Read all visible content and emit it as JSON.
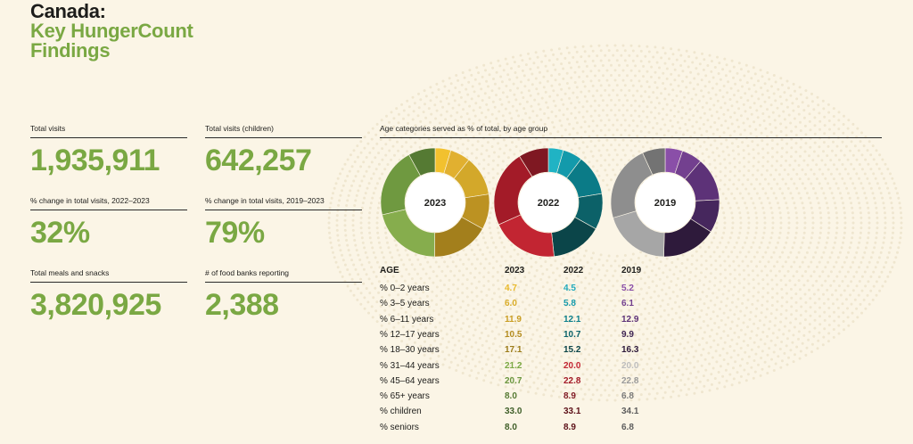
{
  "title": {
    "line1": "Canada:",
    "line2": "Key HungerCount",
    "line3": "Findings"
  },
  "stats": [
    {
      "label": "Total visits",
      "value": "1,935,911"
    },
    {
      "label": "Total visits (children)",
      "value": "642,257"
    },
    {
      "label": "% change in total visits, 2022–2023",
      "value": "32%"
    },
    {
      "label": "% change in total visits, 2019–2023",
      "value": "79%"
    },
    {
      "label": "Total meals and snacks",
      "value": "3,820,925"
    },
    {
      "label": "# of food banks reporting",
      "value": "2,388"
    }
  ],
  "colors": {
    "accent_green": "#7aa843",
    "c2023": [
      "#f2c12e",
      "#e1b030",
      "#d3a82a",
      "#bc9222",
      "#a37f1c",
      "#86ad4d",
      "#6f9940",
      "#557a33",
      "#3f5e28"
    ],
    "c2022": [
      "#20b3c4",
      "#139aab",
      "#0b7b87",
      "#0c6168",
      "#0b4549",
      "#c22532",
      "#a31b28",
      "#7f1822",
      "#5c1018"
    ],
    "c2019": [
      "#8a4fa8",
      "#73408f",
      "#5d3278",
      "#46275d",
      "#2e1a3b",
      "#a6a6a6",
      "#8e8e8e",
      "#737373",
      "#5e5e5e"
    ]
  },
  "chart_data": {
    "type": "pie",
    "title": "Age categories served as % of total, by age group",
    "categories": [
      "% 0–2 years",
      "% 3–5 years",
      "% 6–11 years",
      "% 12–17 years",
      "% 18–30 years",
      "% 31–44 years",
      "% 45–64 years",
      "% 65+ years"
    ],
    "series": [
      {
        "name": "2023",
        "values": [
          4.7,
          6.0,
          11.9,
          10.5,
          17.1,
          21.2,
          20.7,
          8.0
        ]
      },
      {
        "name": "2022",
        "values": [
          4.5,
          5.8,
          12.1,
          10.7,
          15.2,
          20.0,
          22.8,
          8.9
        ]
      },
      {
        "name": "2019",
        "values": [
          5.2,
          6.1,
          12.9,
          9.9,
          16.3,
          20.0,
          22.8,
          6.8
        ]
      }
    ],
    "table": {
      "header": [
        "AGE",
        "2023",
        "2022",
        "2019"
      ],
      "rows": [
        [
          "% 0–2 years",
          "4.7",
          "4.5",
          "5.2"
        ],
        [
          "% 3–5 years",
          "6.0",
          "5.8",
          "6.1"
        ],
        [
          "% 6–11 years",
          "11.9",
          "12.1",
          "12.9"
        ],
        [
          "% 12–17 years",
          "10.5",
          "10.7",
          "9.9"
        ],
        [
          "% 18–30 years",
          "17.1",
          "15.2",
          "16.3"
        ],
        [
          "% 31–44 years",
          "21.2",
          "20.0",
          "20.0"
        ],
        [
          "% 45–64 years",
          "20.7",
          "22.8",
          "22.8"
        ],
        [
          "% 65+ years",
          "8.0",
          "8.9",
          "6.8"
        ],
        [
          "% children",
          "33.0",
          "33.1",
          "34.1"
        ],
        [
          "% seniors",
          "8.0",
          "8.9",
          "6.8"
        ]
      ],
      "value_colors": [
        [
          "#e9b92a",
          "#20a9bb",
          "#8a4fa8"
        ],
        [
          "#d9ac28",
          "#149aab",
          "#73408f"
        ],
        [
          "#c99d22",
          "#0b7f8b",
          "#5d3278"
        ],
        [
          "#b48c1f",
          "#0c646b",
          "#3e2352"
        ],
        [
          "#9c7c1a",
          "#0b4549",
          "#2e1a3b"
        ],
        [
          "#7aa843",
          "#c22532",
          "#bdbdbd"
        ],
        [
          "#6a963e",
          "#a31b28",
          "#9a9a9a"
        ],
        [
          "#557a33",
          "#7f1822",
          "#7a7a7a"
        ],
        [
          "#3f5e28",
          "#5c1018",
          "#5e5e5e"
        ],
        [
          "#3f5e28",
          "#5c1018",
          "#5e5e5e"
        ]
      ]
    }
  }
}
